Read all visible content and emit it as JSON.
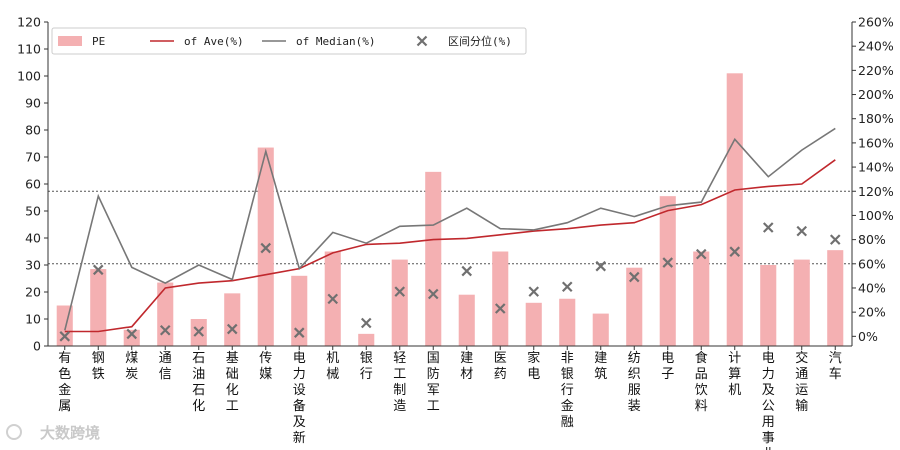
{
  "chart_data": {
    "type": "bar",
    "categories": [
      "有色金属",
      "钢铁",
      "煤炭",
      "通信",
      "石油石化",
      "基础化工",
      "传媒",
      "电力设备及新",
      "机械",
      "银行",
      "轻工制造",
      "国防军工",
      "建材",
      "医药",
      "家电",
      "非银行金融",
      "建筑",
      "纺织服装",
      "电子",
      "食品饮料",
      "计算机",
      "电力及公用事业",
      "交通运输",
      "汽车"
    ],
    "y_left": {
      "ticks": [
        0,
        10,
        20,
        30,
        40,
        50,
        60,
        70,
        80,
        90,
        100,
        110,
        120
      ],
      "ylim": [
        0,
        120
      ]
    },
    "y_right": {
      "ticks": [
        "0%",
        "20%",
        "40%",
        "60%",
        "80%",
        "100%",
        "120%",
        "140%",
        "160%",
        "180%",
        "200%",
        "220%",
        "240%",
        "260%"
      ],
      "ylim": [
        -8,
        260
      ]
    },
    "series": [
      {
        "name": "PE",
        "type": "bar",
        "axis": "left",
        "color": "#f4b0b2",
        "values": [
          15,
          28.5,
          6,
          23.5,
          10,
          19.5,
          73.5,
          26,
          35,
          4.5,
          32,
          64.5,
          19,
          35,
          16,
          17.5,
          12,
          29,
          55.5,
          35,
          101,
          30,
          32,
          35.5
        ]
      },
      {
        "name": "of Ave(%)",
        "type": "line",
        "axis": "right",
        "color": "#c0282d",
        "values": [
          4,
          4,
          8,
          40,
          44,
          46,
          51,
          56,
          69,
          76,
          77,
          80,
          81,
          84,
          87,
          89,
          92,
          94,
          104,
          109,
          121,
          124,
          126,
          146
        ]
      },
      {
        "name": "of Median(%)",
        "type": "line",
        "axis": "right",
        "color": "#777777",
        "values": [
          5,
          116,
          57,
          44,
          59,
          47,
          153,
          56,
          86,
          77,
          91,
          92,
          106,
          89,
          88,
          94,
          106,
          99,
          108,
          111,
          163,
          132,
          154,
          172
        ]
      },
      {
        "name": "区间分位(%)",
        "type": "scatter",
        "axis": "right",
        "color": "#707070",
        "marker": "x",
        "values": [
          0,
          55,
          2,
          5,
          4,
          6,
          73,
          3,
          31,
          11,
          37,
          35,
          54,
          23,
          37,
          41,
          58,
          49,
          61,
          68,
          70,
          90,
          87,
          80
        ]
      }
    ],
    "reference_lines_right": [
      60,
      120
    ],
    "legend_position": "top-left"
  },
  "watermark": "大数跨境"
}
